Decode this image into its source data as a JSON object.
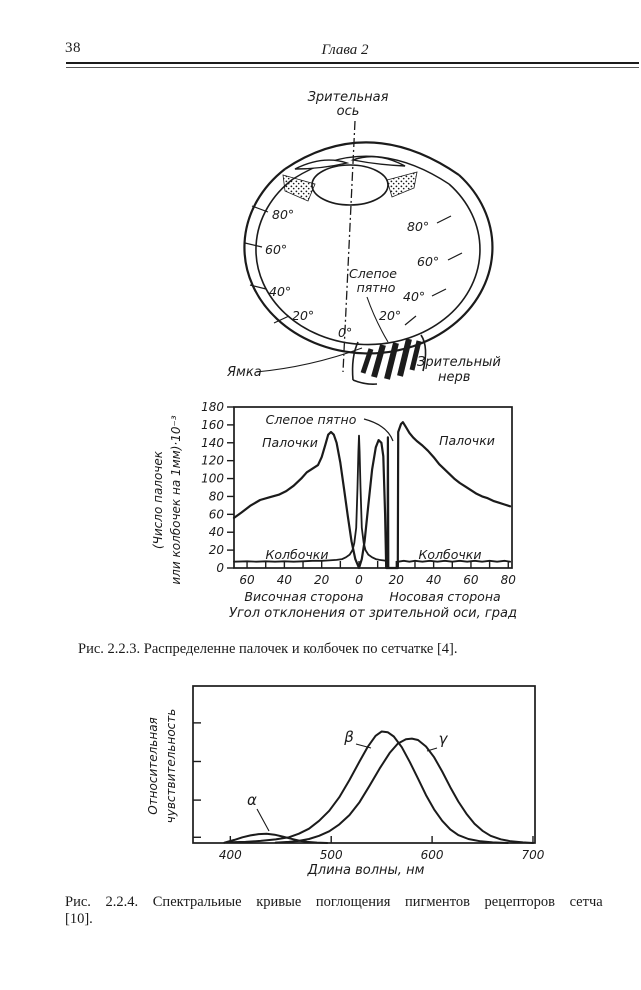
{
  "page": {
    "number": "38",
    "chapter_header": "Глава 2"
  },
  "colors": {
    "ink": "#1b1b1b",
    "paper": "#ffffff"
  },
  "eye_figure": {
    "visual_axis_label": [
      "Зрительная",
      "ось"
    ],
    "blind_spot_label": [
      "Слепое",
      "пятно"
    ],
    "fovea_label": "Ямка",
    "optic_nerve_label": [
      "Зрительный",
      "нерв"
    ],
    "angles_left": [
      "80°",
      "60°",
      "40°",
      "20°"
    ],
    "angles_right": [
      "80°",
      "60°",
      "40°",
      "20°"
    ],
    "angle_zero": "0°"
  },
  "captions": {
    "fig_223": "Рис. 2.2.3. Распределенне палочек и колбочек по сетчатке [4].",
    "fig_224_line1": "Рис. 2.2.4. Спектральиые кривые поглощения пигментов рецепторов сетча",
    "fig_224_line2": "[10]."
  },
  "chart_data": [
    {
      "type": "line",
      "title": "",
      "ylabel_lines": [
        "(Число палочек",
        "или колбочек на 1мм)·10⁻³"
      ],
      "xlabel": "Угол отклонения от зрительной оси, град",
      "x_region_labels": {
        "left": "Височная сторона",
        "right": "Носовая сторона"
      },
      "xlim": [
        -67,
        82
      ],
      "ylim": [
        0,
        180
      ],
      "x_ticks": [
        -60,
        -40,
        -20,
        0,
        20,
        40,
        60,
        80
      ],
      "x_tick_labels": [
        "60",
        "40",
        "20",
        "0",
        "20",
        "40",
        "60",
        "80"
      ],
      "x_ticks_minor": [
        -60,
        -50,
        -40,
        -30,
        -20,
        -10,
        0,
        10,
        20,
        30,
        40,
        50,
        60,
        70,
        80
      ],
      "y_ticks": [
        0,
        20,
        40,
        60,
        80,
        100,
        120,
        140,
        160,
        180
      ],
      "y_tick_labels": [
        "0",
        "20",
        "40",
        "60",
        "80",
        "100",
        "120",
        "140",
        "160",
        "180"
      ],
      "blind_spot_deg": [
        15,
        21
      ],
      "annotations": {
        "blind_spot": "Слепое пятно",
        "rods_left": "Палочки",
        "rods_right": "Палочки",
        "cones_left": "Колбочки",
        "cones_right": "Колбочки"
      },
      "series": [
        {
          "name": "rods",
          "label": "Палочки",
          "width": 2.2,
          "points": [
            [
              -67,
              56
            ],
            [
              -63,
              62
            ],
            [
              -58,
              70
            ],
            [
              -53,
              76
            ],
            [
              -48,
              79
            ],
            [
              -43,
              82
            ],
            [
              -39,
              86
            ],
            [
              -35,
              92
            ],
            [
              -31,
              100
            ],
            [
              -28,
              107
            ],
            [
              -25,
              111
            ],
            [
              -22,
              115
            ],
            [
              -20,
              124
            ],
            [
              -18,
              138
            ],
            [
              -16.5,
              149
            ],
            [
              -15,
              152
            ],
            [
              -13.5,
              149
            ],
            [
              -12,
              140
            ],
            [
              -10,
              118
            ],
            [
              -8,
              88
            ],
            [
              -6,
              58
            ],
            [
              -4,
              30
            ],
            [
              -2,
              10
            ],
            [
              0,
              0
            ],
            [
              1.5,
              10
            ],
            [
              3,
              30
            ],
            [
              5,
              70
            ],
            [
              7,
              110
            ],
            [
              9,
              135
            ],
            [
              10.5,
              143
            ],
            [
              12,
              140
            ],
            [
              13,
              125
            ],
            [
              14,
              60
            ],
            [
              14.6,
              0
            ],
            [
              15.3,
              0
            ],
            [
              15.5,
              146
            ],
            [
              15.7,
              0
            ],
            [
              20.8,
              0
            ],
            [
              21,
              152
            ],
            [
              22.5,
              161
            ],
            [
              23.5,
              163
            ],
            [
              25,
              158
            ],
            [
              27,
              151
            ],
            [
              29,
              146
            ],
            [
              31,
              142
            ],
            [
              34,
              137
            ],
            [
              37,
              131
            ],
            [
              40,
              124
            ],
            [
              43,
              116
            ],
            [
              45,
              112
            ],
            [
              48,
              106
            ],
            [
              51,
              100
            ],
            [
              54,
              95
            ],
            [
              57,
              91
            ],
            [
              60,
              87
            ],
            [
              63,
              83
            ],
            [
              66,
              80
            ],
            [
              69,
              78
            ],
            [
              72,
              75
            ],
            [
              75,
              73
            ],
            [
              78,
              71
            ],
            [
              81,
              69
            ]
          ]
        },
        {
          "name": "cones",
          "label": "Колбочки",
          "width": 1.8,
          "points": [
            [
              -67,
              7
            ],
            [
              -60,
              7.5
            ],
            [
              -55,
              7
            ],
            [
              -50,
              7.5
            ],
            [
              -45,
              7
            ],
            [
              -40,
              7.5
            ],
            [
              -35,
              7
            ],
            [
              -30,
              7.5
            ],
            [
              -25,
              8
            ],
            [
              -20,
              8
            ],
            [
              -16,
              8.5
            ],
            [
              -12,
              9
            ],
            [
              -9,
              10
            ],
            [
              -7,
              12
            ],
            [
              -5,
              15
            ],
            [
              -3.5,
              20
            ],
            [
              -2.5,
              28
            ],
            [
              -1.5,
              45
            ],
            [
              -0.8,
              90
            ],
            [
              -0.3,
              130
            ],
            [
              0,
              148
            ],
            [
              0.3,
              130
            ],
            [
              0.8,
              90
            ],
            [
              1.5,
              45
            ],
            [
              2.5,
              28
            ],
            [
              3.5,
              20
            ],
            [
              5,
              15
            ],
            [
              7,
              12
            ],
            [
              9,
              10
            ],
            [
              11,
              9
            ],
            [
              13,
              8.5
            ],
            [
              14.6,
              8
            ],
            [
              14.6,
              0
            ],
            [
              20.8,
              0
            ],
            [
              21,
              7
            ],
            [
              24,
              8
            ],
            [
              27,
              7
            ],
            [
              30,
              8
            ],
            [
              34,
              7
            ],
            [
              38,
              8
            ],
            [
              42,
              7
            ],
            [
              46,
              8
            ],
            [
              50,
              7
            ],
            [
              54,
              8
            ],
            [
              58,
              7
            ],
            [
              62,
              8
            ],
            [
              66,
              7
            ],
            [
              70,
              8
            ],
            [
              74,
              7
            ],
            [
              78,
              8
            ],
            [
              81,
              7
            ]
          ]
        }
      ]
    },
    {
      "type": "line",
      "title": "",
      "ylabel_lines": [
        "Относительная",
        "чувствительность"
      ],
      "xlabel": "Длина волны, нм",
      "xlim": [
        363,
        702
      ],
      "ylim": [
        0,
        1
      ],
      "x_ticks": [
        400,
        500,
        600,
        700
      ],
      "x_tick_labels": [
        "400",
        "500",
        "600",
        "700"
      ],
      "y_ticks": [
        0.04,
        0.3,
        0.57,
        0.84
      ],
      "series": [
        {
          "name": "alpha",
          "label": "α",
          "width": 2,
          "points": [
            [
              394,
              0.002
            ],
            [
              397,
              0.008
            ],
            [
              404,
              0.022
            ],
            [
              412,
              0.04
            ],
            [
              420,
              0.053
            ],
            [
              428,
              0.062
            ],
            [
              436,
              0.064
            ],
            [
              444,
              0.058
            ],
            [
              452,
              0.045
            ],
            [
              460,
              0.03
            ],
            [
              468,
              0.017
            ],
            [
              476,
              0.008
            ],
            [
              486,
              0.003
            ],
            [
              496,
              0
            ]
          ]
        },
        {
          "name": "beta",
          "label": "β",
          "width": 2,
          "points": [
            [
              400,
              0.005
            ],
            [
              415,
              0.008
            ],
            [
              430,
              0.015
            ],
            [
              445,
              0.025
            ],
            [
              458,
              0.04
            ],
            [
              468,
              0.065
            ],
            [
              478,
              0.1
            ],
            [
              488,
              0.155
            ],
            [
              498,
              0.225
            ],
            [
              508,
              0.32
            ],
            [
              518,
              0.44
            ],
            [
              528,
              0.57
            ],
            [
              536,
              0.67
            ],
            [
              544,
              0.75
            ],
            [
              550,
              0.78
            ],
            [
              556,
              0.775
            ],
            [
              562,
              0.745
            ],
            [
              570,
              0.67
            ],
            [
              578,
              0.565
            ],
            [
              586,
              0.45
            ],
            [
              594,
              0.335
            ],
            [
              602,
              0.235
            ],
            [
              610,
              0.155
            ],
            [
              618,
              0.095
            ],
            [
              626,
              0.055
            ],
            [
              636,
              0.028
            ],
            [
              648,
              0.012
            ],
            [
              660,
              0.004
            ],
            [
              675,
              0
            ]
          ]
        },
        {
          "name": "gamma",
          "label": "γ",
          "width": 2,
          "points": [
            [
              445,
              0.003
            ],
            [
              458,
              0.008
            ],
            [
              468,
              0.015
            ],
            [
              478,
              0.028
            ],
            [
              488,
              0.05
            ],
            [
              498,
              0.082
            ],
            [
              508,
              0.13
            ],
            [
              518,
              0.195
            ],
            [
              528,
              0.285
            ],
            [
              538,
              0.4
            ],
            [
              548,
              0.52
            ],
            [
              558,
              0.63
            ],
            [
              566,
              0.695
            ],
            [
              574,
              0.725
            ],
            [
              580,
              0.73
            ],
            [
              586,
              0.72
            ],
            [
              594,
              0.675
            ],
            [
              602,
              0.6
            ],
            [
              610,
              0.5
            ],
            [
              618,
              0.39
            ],
            [
              626,
              0.29
            ],
            [
              634,
              0.205
            ],
            [
              642,
              0.135
            ],
            [
              650,
              0.085
            ],
            [
              658,
              0.05
            ],
            [
              668,
              0.026
            ],
            [
              678,
              0.012
            ],
            [
              690,
              0.004
            ],
            [
              700,
              0
            ]
          ]
        }
      ]
    }
  ]
}
